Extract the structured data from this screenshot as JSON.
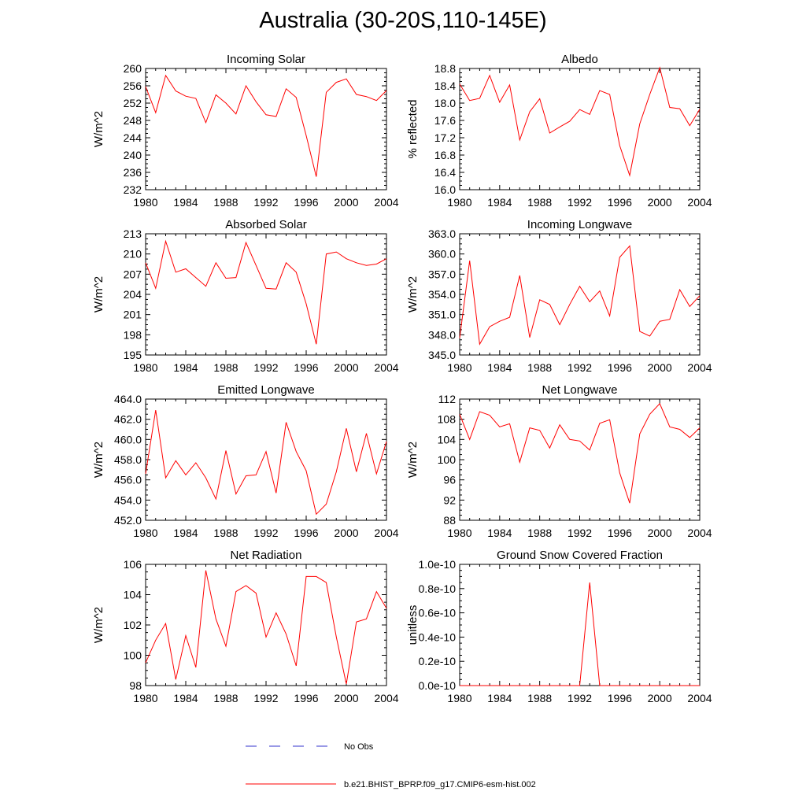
{
  "title": "Australia (30-20S,110-145E)",
  "legend": {
    "entries": [
      {
        "label": "No Obs",
        "color": "#3333cc",
        "style": "dashed"
      },
      {
        "label": "b.e21.BHIST_BPRP.f09_g17.CMIP6-esm-hist.002",
        "color": "#ff0000",
        "style": "solid"
      }
    ]
  },
  "chart_data": [
    {
      "type": "line",
      "title": "Incoming Solar",
      "ylabel": "W/m^2",
      "xlim": [
        1980,
        2004
      ],
      "ylim": [
        232,
        260
      ],
      "xticks": [
        "1980",
        "1984",
        "1988",
        "1992",
        "1996",
        "2000",
        "2004"
      ],
      "yticks": [
        "232",
        "236",
        "240",
        "244",
        "248",
        "252",
        "256",
        "260"
      ],
      "x": [
        1980,
        1981,
        1982,
        1983,
        1984,
        1985,
        1986,
        1987,
        1988,
        1989,
        1990,
        1991,
        1992,
        1993,
        1994,
        1995,
        1996,
        1997,
        1998,
        1999,
        2000,
        2001,
        2002,
        2003,
        2004
      ],
      "series": [
        {
          "color": "#ff0000",
          "values": [
            255.8,
            249.8,
            258.4,
            254.8,
            253.6,
            253.1,
            247.5,
            253.9,
            252.0,
            249.5,
            256.0,
            252.3,
            249.3,
            248.9,
            255.3,
            253.3,
            244.5,
            235.0,
            254.5,
            256.8,
            257.6,
            254.0,
            253.5,
            252.6,
            254.9
          ]
        }
      ]
    },
    {
      "type": "line",
      "title": "Albedo",
      "ylabel": "% reflected",
      "xlim": [
        1980,
        2004
      ],
      "ylim": [
        16.0,
        18.8
      ],
      "xticks": [
        "1980",
        "1984",
        "1988",
        "1992",
        "1996",
        "2000",
        "2004"
      ],
      "yticks": [
        "16.0",
        "16.4",
        "16.8",
        "17.2",
        "17.6",
        "18.0",
        "18.4",
        "18.8"
      ],
      "x": [
        1980,
        1981,
        1982,
        1983,
        1984,
        1985,
        1986,
        1987,
        1988,
        1989,
        1990,
        1991,
        1992,
        1993,
        1994,
        1995,
        1996,
        1997,
        1998,
        1999,
        2000,
        2001,
        2002,
        2003,
        2004
      ],
      "series": [
        {
          "color": "#ff0000",
          "values": [
            18.44,
            18.06,
            18.11,
            18.64,
            18.02,
            18.42,
            17.15,
            17.8,
            18.1,
            17.31,
            17.45,
            17.58,
            17.85,
            17.74,
            18.29,
            18.2,
            17.02,
            16.33,
            17.52,
            18.2,
            18.82,
            17.9,
            17.87,
            17.48,
            17.86
          ]
        }
      ]
    },
    {
      "type": "line",
      "title": "Absorbed Solar",
      "ylabel": "W/m^2",
      "xlim": [
        1980,
        2004
      ],
      "ylim": [
        195,
        213
      ],
      "xticks": [
        "1980",
        "1984",
        "1988",
        "1992",
        "1996",
        "2000",
        "2004"
      ],
      "yticks": [
        "195",
        "198",
        "201",
        "204",
        "207",
        "210",
        "213"
      ],
      "x": [
        1980,
        1981,
        1982,
        1983,
        1984,
        1985,
        1986,
        1987,
        1988,
        1989,
        1990,
        1991,
        1992,
        1993,
        1994,
        1995,
        1996,
        1997,
        1998,
        1999,
        2000,
        2001,
        2002,
        2003,
        2004
      ],
      "series": [
        {
          "color": "#ff0000",
          "values": [
            208.7,
            204.9,
            211.9,
            207.3,
            207.8,
            206.5,
            205.2,
            208.7,
            206.4,
            206.5,
            211.7,
            208.3,
            204.9,
            204.8,
            208.7,
            207.3,
            202.6,
            196.6,
            210.0,
            210.3,
            209.3,
            208.7,
            208.3,
            208.5,
            209.3
          ]
        }
      ]
    },
    {
      "type": "line",
      "title": "Incoming Longwave",
      "ylabel": "W/m^2",
      "xlim": [
        1980,
        2004
      ],
      "ylim": [
        345.0,
        363.0
      ],
      "xticks": [
        "1980",
        "1984",
        "1988",
        "1992",
        "1996",
        "2000",
        "2004"
      ],
      "yticks": [
        "345.0",
        "348.0",
        "351.0",
        "354.0",
        "357.0",
        "360.0",
        "363.0"
      ],
      "x": [
        1980,
        1981,
        1982,
        1983,
        1984,
        1985,
        1986,
        1987,
        1988,
        1989,
        1990,
        1991,
        1992,
        1993,
        1994,
        1995,
        1996,
        1997,
        1998,
        1999,
        2000,
        2001,
        2002,
        2003,
        2004
      ],
      "series": [
        {
          "color": "#ff0000",
          "values": [
            347.5,
            359.0,
            346.6,
            349.2,
            350.0,
            350.6,
            356.8,
            347.6,
            353.2,
            352.5,
            349.5,
            352.5,
            355.2,
            352.9,
            354.5,
            350.8,
            359.5,
            361.2,
            348.5,
            347.8,
            350.0,
            350.3,
            354.7,
            352.2,
            353.8
          ]
        }
      ]
    },
    {
      "type": "line",
      "title": "Emitted Longwave",
      "ylabel": "W/m^2",
      "xlim": [
        1980,
        2004
      ],
      "ylim": [
        452.0,
        464.0
      ],
      "xticks": [
        "1980",
        "1984",
        "1988",
        "1992",
        "1996",
        "2000",
        "2004"
      ],
      "yticks": [
        "452.0",
        "454.0",
        "456.0",
        "458.0",
        "460.0",
        "462.0",
        "464.0"
      ],
      "x": [
        1980,
        1981,
        1982,
        1983,
        1984,
        1985,
        1986,
        1987,
        1988,
        1989,
        1990,
        1991,
        1992,
        1993,
        1994,
        1995,
        1996,
        1997,
        1998,
        1999,
        2000,
        2001,
        2002,
        2003,
        2004
      ],
      "series": [
        {
          "color": "#ff0000",
          "values": [
            456.6,
            462.9,
            456.2,
            457.9,
            456.5,
            457.7,
            456.2,
            454.1,
            458.9,
            454.6,
            456.4,
            456.5,
            458.8,
            454.7,
            461.7,
            458.8,
            456.9,
            452.6,
            453.6,
            456.8,
            461.1,
            456.8,
            460.6,
            456.6,
            459.8
          ]
        }
      ]
    },
    {
      "type": "line",
      "title": "Net Longwave",
      "ylabel": "W/m^2",
      "xlim": [
        1980,
        2004
      ],
      "ylim": [
        88,
        112
      ],
      "xticks": [
        "1980",
        "1984",
        "1988",
        "1992",
        "1996",
        "2000",
        "2004"
      ],
      "yticks": [
        "88",
        "92",
        "96",
        "100",
        "104",
        "108",
        "112"
      ],
      "x": [
        1980,
        1981,
        1982,
        1983,
        1984,
        1985,
        1986,
        1987,
        1988,
        1989,
        1990,
        1991,
        1992,
        1993,
        1994,
        1995,
        1996,
        1997,
        1998,
        1999,
        2000,
        2001,
        2002,
        2003,
        2004
      ],
      "series": [
        {
          "color": "#ff0000",
          "values": [
            109.0,
            104.0,
            109.5,
            108.8,
            106.5,
            107.1,
            99.5,
            106.3,
            105.8,
            102.3,
            106.9,
            104.0,
            103.7,
            101.9,
            107.2,
            107.9,
            97.4,
            91.4,
            105.1,
            109.0,
            111.1,
            106.5,
            106.0,
            104.4,
            106.3
          ]
        }
      ]
    },
    {
      "type": "line",
      "title": "Net Radiation",
      "ylabel": "W/m^2",
      "xlim": [
        1980,
        2004
      ],
      "ylim": [
        98,
        106
      ],
      "xticks": [
        "1980",
        "1984",
        "1988",
        "1992",
        "1996",
        "2000",
        "2004"
      ],
      "yticks": [
        "98",
        "100",
        "102",
        "104",
        "106"
      ],
      "x": [
        1980,
        1981,
        1982,
        1983,
        1984,
        1985,
        1986,
        1987,
        1988,
        1989,
        1990,
        1991,
        1992,
        1993,
        1994,
        1995,
        1996,
        1997,
        1998,
        1999,
        2000,
        2001,
        2002,
        2003,
        2004
      ],
      "series": [
        {
          "color": "#ff0000",
          "values": [
            99.5,
            101.0,
            102.1,
            98.4,
            101.3,
            99.2,
            105.6,
            102.4,
            100.6,
            104.2,
            104.6,
            104.1,
            101.2,
            102.8,
            101.4,
            99.3,
            105.2,
            105.2,
            104.8,
            101.2,
            98.1,
            102.2,
            102.4,
            104.2,
            103.1
          ]
        }
      ]
    },
    {
      "type": "line",
      "title": "Ground Snow Covered Fraction",
      "ylabel": "unitless",
      "xlim": [
        1980,
        2004
      ],
      "ylim": [
        0.0,
        1.0
      ],
      "xticks": [
        "1980",
        "1984",
        "1988",
        "1992",
        "1996",
        "2000",
        "2004"
      ],
      "yticks": [
        "0.0e-10",
        "0.2e-10",
        "0.4e-10",
        "0.6e-10",
        "0.8e-10",
        "1.0e-10"
      ],
      "x": [
        1980,
        1981,
        1982,
        1983,
        1984,
        1985,
        1986,
        1987,
        1988,
        1989,
        1990,
        1991,
        1992,
        1993,
        1994,
        1995,
        1996,
        1997,
        1998,
        1999,
        2000,
        2001,
        2002,
        2003,
        2004
      ],
      "series": [
        {
          "color": "#ff0000",
          "values": [
            0,
            0,
            0,
            0,
            0,
            0,
            0,
            0,
            0,
            0,
            0,
            0,
            0,
            0.85,
            0,
            0,
            0,
            0,
            0,
            0,
            0,
            0,
            0,
            0,
            0
          ]
        }
      ]
    }
  ]
}
